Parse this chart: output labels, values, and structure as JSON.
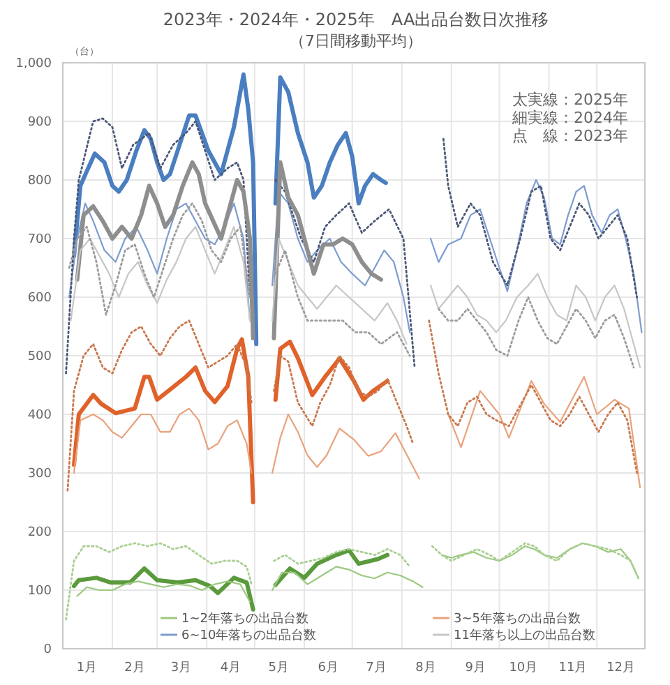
{
  "chart_data": {
    "type": "line",
    "title": "2023年・2024年・2025年　AA出品台数日次推移",
    "subtitle": "（7日間移動平均）",
    "ylabel": "（台）",
    "xlim": [
      "--01-01",
      "--12-31"
    ],
    "xticks": [
      {
        "value": "--01-01",
        "label": null
      },
      {
        "value": "--01-16",
        "label": "1月"
      },
      {
        "value": "--02-01",
        "label": null
      },
      {
        "value": "--02-15",
        "label": "2月"
      },
      {
        "value": "--03-01",
        "label": null
      },
      {
        "value": "--03-16",
        "label": "3月"
      },
      {
        "value": "--04-01",
        "label": null
      },
      {
        "value": "--04-16",
        "label": "4月"
      },
      {
        "value": "--05-01",
        "label": null
      },
      {
        "value": "--05-16",
        "label": "5月"
      },
      {
        "value": "--06-01",
        "label": null
      },
      {
        "value": "--06-16",
        "label": "6月"
      },
      {
        "value": "--07-01",
        "label": null
      },
      {
        "value": "--07-16",
        "label": "7月"
      },
      {
        "value": "--08-01",
        "label": null
      },
      {
        "value": "--08-16",
        "label": "8月"
      },
      {
        "value": "--09-01",
        "label": null
      },
      {
        "value": "--09-16",
        "label": "9月"
      },
      {
        "value": "--10-01",
        "label": null
      },
      {
        "value": "--10-16",
        "label": "10月"
      },
      {
        "value": "--11-01",
        "label": null
      },
      {
        "value": "--11-16",
        "label": "11月"
      },
      {
        "value": "--12-01",
        "label": null
      },
      {
        "value": "--12-16",
        "label": "12月"
      },
      {
        "value": "--12-31",
        "label": null
      }
    ],
    "ylim": [
      0,
      1000
    ],
    "yticks": [
      0,
      100,
      200,
      300,
      400,
      500,
      600,
      700,
      800,
      900,
      {
        "value": 1000,
        "label": "1,000"
      }
    ],
    "grid": true,
    "legend": "bottom",
    "annotations": [
      "太実線：2025年",
      "細実線：2024年",
      "点　線：2023年"
    ],
    "series": [
      {
        "color": "#5a9a3c",
        "line_style": "solid",
        "x": [
          "--01-08",
          "--01-11",
          "--01-22",
          "--01-31",
          "--02-12",
          "--02-21",
          "--03-01",
          "--03-14",
          "--03-25",
          "--04-03",
          "--04-08",
          "--04-18",
          "--04-26",
          "--04-30",
          "--05-07",
          "--05-14",
          "--05-23",
          "--06-01",
          "--06-09",
          "--06-21",
          "--06-29",
          "--07-05",
          "--07-17",
          "--07-23"
        ],
        "values": [
          107,
          117,
          121,
          113,
          113,
          137,
          117,
          113,
          117,
          107,
          95,
          121,
          113,
          67,
          null,
          109,
          137,
          121,
          145,
          160,
          168,
          145,
          153,
          160
        ]
      },
      {
        "name": "1~2年落ちの出品台数",
        "color": "#9cc981",
        "line_style": "solid",
        "x": [
          "--01-10",
          "--01-16",
          "--01-24",
          "--02-01",
          "--02-09",
          "--02-17",
          "--02-25",
          "--03-05",
          "--03-13",
          "--03-21",
          "--03-29",
          "--04-06",
          "--04-14",
          "--04-22",
          "--04-28",
          "--05-05",
          "--05-12",
          "--05-18",
          "--05-26",
          "--06-03",
          "--06-09",
          "--06-15",
          "--06-21",
          "--06-29",
          "--07-07",
          "--07-15",
          "--07-23",
          "--07-31",
          "--08-08",
          "--08-14",
          "--08-19",
          "--08-26",
          "--09-01",
          "--09-07",
          "--09-15",
          "--09-23",
          "--10-01",
          "--10-09",
          "--10-17",
          "--10-23",
          "--10-29",
          "--11-06",
          "--11-14",
          "--11-22",
          "--11-30",
          "--12-08",
          "--12-16",
          "--12-22",
          "--12-27"
        ],
        "values": [
          90,
          105,
          100,
          100,
          110,
          115,
          110,
          105,
          110,
          108,
          100,
          110,
          115,
          110,
          80,
          null,
          100,
          130,
          130,
          110,
          120,
          130,
          140,
          135,
          125,
          120,
          130,
          125,
          115,
          105,
          null,
          160,
          155,
          160,
          165,
          155,
          150,
          160,
          175,
          170,
          160,
          155,
          170,
          180,
          175,
          165,
          170,
          150,
          120
        ]
      },
      {
        "color": "#a9cf92",
        "line_style": "dotted",
        "x": [
          "--01-03",
          "--01-08",
          "--01-14",
          "--01-22",
          "--01-30",
          "--02-07",
          "--02-15",
          "--02-23",
          "--03-03",
          "--03-11",
          "--03-19",
          "--03-27",
          "--04-04",
          "--04-12",
          "--04-20",
          "--04-26",
          "--04-29",
          "--05-06",
          "--05-13",
          "--05-20",
          "--05-28",
          "--06-05",
          "--06-13",
          "--06-21",
          "--06-29",
          "--07-07",
          "--07-15",
          "--07-23",
          "--07-31",
          "--08-06",
          "--08-13",
          "--08-20",
          "--08-26",
          "--09-01",
          "--09-09",
          "--09-17",
          "--09-25",
          "--10-01",
          "--10-09",
          "--10-17",
          "--10-23",
          "--10-29",
          "--11-06",
          "--11-14",
          "--11-22",
          "--11-30",
          "--12-08",
          "--12-16",
          "--12-22",
          "--12-27"
        ],
        "values": [
          50,
          150,
          175,
          175,
          165,
          175,
          180,
          175,
          180,
          170,
          175,
          160,
          145,
          150,
          150,
          140,
          110,
          null,
          150,
          160,
          145,
          150,
          155,
          165,
          170,
          165,
          160,
          170,
          160,
          140,
          null,
          175,
          160,
          150,
          160,
          170,
          160,
          150,
          165,
          180,
          175,
          160,
          150,
          170,
          180,
          175,
          170,
          160,
          150,
          120
        ]
      },
      {
        "color": "#e0622a",
        "line_style": "solid",
        "x": [
          "--01-08",
          "--01-11",
          "--01-20",
          "--01-25",
          "--02-03",
          "--02-15",
          "--02-21",
          "--02-24",
          "--03-01",
          "--03-08",
          "--03-19",
          "--03-25",
          "--03-31",
          "--04-06",
          "--04-14",
          "--04-20",
          "--04-23",
          "--04-27",
          "--04-30",
          "--05-07",
          "--05-14",
          "--05-17",
          "--05-23",
          "--05-28",
          "--06-06",
          "--06-14",
          "--06-21",
          "--06-23",
          "--07-02",
          "--07-08",
          "--07-14",
          "--07-23"
        ],
        "values": [
          314,
          400,
          433,
          418,
          402,
          410,
          464,
          464,
          425,
          440,
          464,
          480,
          440,
          421,
          448,
          512,
          528,
          464,
          250,
          null,
          425,
          512,
          524,
          496,
          433,
          464,
          488,
          496,
          457,
          425,
          440,
          457
        ]
      },
      {
        "name": "3~5年落ちの出品台数",
        "color": "#e9a27c",
        "line_style": "solid",
        "x": [
          "--01-08",
          "--01-12",
          "--01-20",
          "--01-26",
          "--02-01",
          "--02-07",
          "--02-13",
          "--02-19",
          "--02-25",
          "--03-03",
          "--03-09",
          "--03-15",
          "--03-21",
          "--03-27",
          "--04-02",
          "--04-08",
          "--04-14",
          "--04-20",
          "--04-26",
          "--04-29",
          "--05-06",
          "--05-12",
          "--05-17",
          "--05-22",
          "--05-28",
          "--06-03",
          "--06-09",
          "--06-15",
          "--06-23",
          "--07-02",
          "--07-11",
          "--07-19",
          "--07-28",
          "--08-06",
          "--08-12",
          "--08-21",
          "--08-30",
          "--09-07",
          "--09-19",
          "--10-01",
          "--10-07",
          "--10-21",
          "--10-29",
          "--11-08",
          "--11-23",
          "--12-01",
          "--12-12",
          "--12-21",
          "--12-28"
        ],
        "values": [
          300,
          390,
          400,
          390,
          370,
          360,
          380,
          400,
          400,
          370,
          370,
          400,
          410,
          390,
          340,
          350,
          380,
          390,
          350,
          300,
          null,
          300,
          360,
          400,
          370,
          330,
          310,
          330,
          376,
          357,
          329,
          337,
          368,
          321,
          290,
          null,
          400,
          344,
          440,
          400,
          360,
          457,
          418,
          387,
          464,
          400,
          425,
          410,
          275
        ]
      },
      {
        "color": "#c9784c",
        "line_style": "dotted",
        "x": [
          "--01-04",
          "--01-08",
          "--01-14",
          "--01-20",
          "--01-26",
          "--02-01",
          "--02-07",
          "--02-13",
          "--02-19",
          "--02-25",
          "--03-03",
          "--03-09",
          "--03-15",
          "--03-21",
          "--03-27",
          "--04-02",
          "--04-08",
          "--04-14",
          "--04-20",
          "--04-26",
          "--04-29",
          "--05-06",
          "--05-13",
          "--05-17",
          "--05-22",
          "--05-28",
          "--06-06",
          "--06-11",
          "--06-17",
          "--06-23",
          "--06-29",
          "--07-05",
          "--07-11",
          "--07-17",
          "--07-23",
          "--07-29",
          "--08-04",
          "--08-08",
          "--08-14",
          "--08-18",
          "--08-24",
          "--08-30",
          "--09-05",
          "--09-11",
          "--09-17",
          "--09-23",
          "--09-29",
          "--10-07",
          "--10-15",
          "--10-21",
          "--10-27",
          "--11-02",
          "--11-08",
          "--11-14",
          "--11-20",
          "--11-26",
          "--12-02",
          "--12-08",
          "--12-14",
          "--12-20",
          "--12-26"
        ],
        "values": [
          270,
          440,
          500,
          520,
          480,
          470,
          510,
          540,
          550,
          520,
          500,
          530,
          550,
          560,
          520,
          480,
          490,
          500,
          520,
          480,
          420,
          null,
          440,
          500,
          490,
          420,
          380,
          420,
          450,
          500,
          480,
          440,
          430,
          440,
          460,
          420,
          380,
          350,
          null,
          560,
          470,
          400,
          380,
          420,
          430,
          400,
          390,
          380,
          420,
          450,
          420,
          390,
          380,
          400,
          430,
          400,
          370,
          400,
          420,
          390,
          300
        ]
      },
      {
        "color": "#4a7ec0",
        "line_style": "solid",
        "x": [
          "--01-08",
          "--01-12",
          "--01-16",
          "--01-21",
          "--01-27",
          "--02-01",
          "--02-05",
          "--02-10",
          "--02-16",
          "--02-21",
          "--02-25",
          "--03-01",
          "--03-05",
          "--03-09",
          "--03-15",
          "--03-21",
          "--03-25",
          "--03-29",
          "--04-02",
          "--04-06",
          "--04-10",
          "--04-14",
          "--04-18",
          "--04-22",
          "--04-24",
          "--04-27",
          "--04-30",
          "--05-02",
          "--05-08",
          "--05-14",
          "--05-17",
          "--05-22",
          "--05-28",
          "--06-03",
          "--06-07",
          "--06-12",
          "--06-17",
          "--06-22",
          "--06-27",
          "--07-01",
          "--07-05",
          "--07-09",
          "--07-14",
          "--07-19",
          "--07-22"
        ],
        "values": [
          670,
          790,
          815,
          845,
          830,
          790,
          780,
          800,
          850,
          885,
          870,
          830,
          800,
          810,
          860,
          910,
          910,
          880,
          850,
          830,
          810,
          850,
          890,
          950,
          980,
          920,
          830,
          520,
          null,
          760,
          975,
          950,
          880,
          830,
          770,
          790,
          830,
          860,
          880,
          840,
          760,
          790,
          810,
          800,
          795
        ]
      },
      {
        "name": "6~10年落ちの出品台数",
        "color": "#7d9cd0",
        "line_style": "solid",
        "x": [
          "--01-05",
          "--01-10",
          "--01-15",
          "--01-20",
          "--01-27",
          "--02-03",
          "--02-09",
          "--02-16",
          "--02-23",
          "--03-01",
          "--03-07",
          "--03-13",
          "--03-19",
          "--03-25",
          "--03-31",
          "--04-06",
          "--04-12",
          "--04-18",
          "--04-24",
          "--04-28",
          "--05-05",
          "--05-12",
          "--05-16",
          "--05-22",
          "--05-28",
          "--06-03",
          "--06-09",
          "--06-17",
          "--06-24",
          "--07-01",
          "--07-09",
          "--07-15",
          "--07-21",
          "--07-27",
          "--08-02",
          "--08-06",
          "--08-13",
          "--08-19",
          "--08-24",
          "--08-30",
          "--09-07",
          "--09-13",
          "--09-19",
          "--09-25",
          "--10-01",
          "--10-06",
          "--10-12",
          "--10-18",
          "--10-24",
          "--10-29",
          "--11-03",
          "--11-08",
          "--11-13",
          "--11-18",
          "--11-23",
          "--11-28",
          "--12-04",
          "--12-09",
          "--12-14",
          "--12-19",
          "--12-24",
          "--12-29"
        ],
        "values": [
          600,
          700,
          760,
          730,
          680,
          660,
          700,
          720,
          680,
          640,
          700,
          750,
          760,
          730,
          700,
          690,
          720,
          760,
          700,
          560,
          null,
          620,
          780,
          760,
          700,
          660,
          680,
          700,
          660,
          640,
          620,
          650,
          680,
          660,
          600,
          540,
          null,
          700,
          660,
          690,
          700,
          740,
          750,
          700,
          650,
          610,
          680,
          760,
          800,
          770,
          700,
          690,
          740,
          780,
          790,
          740,
          710,
          740,
          750,
          700,
          640,
          540
        ]
      },
      {
        "color": "#4b5878",
        "line_style": "dotted",
        "x": [
          "--01-03",
          "--01-08",
          "--01-11",
          "--01-20",
          "--01-26",
          "--02-01",
          "--02-07",
          "--02-14",
          "--02-24",
          "--03-03",
          "--03-11",
          "--03-19",
          "--03-25",
          "--03-31",
          "--04-06",
          "--04-14",
          "--04-20",
          "--04-24",
          "--04-28",
          "--05-06",
          "--05-14",
          "--05-20",
          "--05-30",
          "--06-07",
          "--06-14",
          "--06-21",
          "--06-29",
          "--07-07",
          "--07-15",
          "--07-24",
          "--08-02",
          "--08-09",
          "--08-18",
          "--08-27",
          "--08-30",
          "--09-05",
          "--09-13",
          "--09-19",
          "--09-27",
          "--10-06",
          "--10-14",
          "--10-21",
          "--10-27",
          "--11-02",
          "--11-08",
          "--11-14",
          "--11-20",
          "--11-26",
          "--12-02",
          "--12-08",
          "--12-14",
          "--12-20",
          "--12-26"
        ],
        "values": [
          470,
          700,
          800,
          900,
          905,
          890,
          820,
          860,
          880,
          820,
          860,
          880,
          900,
          850,
          800,
          820,
          830,
          800,
          600,
          null,
          800,
          780,
          700,
          660,
          720,
          740,
          760,
          710,
          730,
          750,
          700,
          480,
          null,
          870,
          790,
          720,
          760,
          740,
          660,
          620,
          700,
          780,
          790,
          700,
          680,
          720,
          760,
          740,
          700,
          720,
          740,
          700,
          600
        ]
      },
      {
        "color": "#8e8e8e",
        "line_style": "solid",
        "x": [
          "--01-10",
          "--01-14",
          "--01-20",
          "--01-26",
          "--02-01",
          "--02-07",
          "--02-13",
          "--02-19",
          "--02-24",
          "--03-01",
          "--03-06",
          "--03-11",
          "--03-17",
          "--03-23",
          "--03-27",
          "--03-31",
          "--04-05",
          "--04-10",
          "--04-16",
          "--04-20",
          "--04-24",
          "--04-28",
          "--04-30",
          "--05-06",
          "--05-13",
          "--05-17",
          "--05-22",
          "--05-28",
          "--06-03",
          "--06-07",
          "--06-13",
          "--06-19",
          "--06-25",
          "--07-01",
          "--07-07",
          "--07-13",
          "--07-19"
        ],
        "values": [
          630,
          740,
          755,
          730,
          700,
          720,
          700,
          740,
          790,
          760,
          720,
          740,
          790,
          830,
          810,
          760,
          730,
          700,
          760,
          800,
          780,
          700,
          530,
          null,
          530,
          830,
          770,
          740,
          680,
          640,
          690,
          690,
          700,
          690,
          660,
          640,
          630
        ]
      },
      {
        "name": "11年落ち以上の出品台数",
        "color": "#c6c6c6",
        "line_style": "solid",
        "x": [
          "--01-06",
          "--01-12",
          "--01-18",
          "--01-24",
          "--01-30",
          "--02-05",
          "--02-11",
          "--02-17",
          "--02-23",
          "--03-01",
          "--03-07",
          "--03-13",
          "--03-19",
          "--03-25",
          "--03-31",
          "--04-06",
          "--04-12",
          "--04-18",
          "--04-24",
          "--04-28",
          "--05-05",
          "--05-12",
          "--05-16",
          "--05-22",
          "--05-28",
          "--06-03",
          "--06-09",
          "--06-15",
          "--06-21",
          "--06-29",
          "--07-07",
          "--07-15",
          "--07-23",
          "--07-29",
          "--08-04",
          "--08-12",
          "--08-19",
          "--08-24",
          "--08-30",
          "--09-05",
          "--09-11",
          "--09-17",
          "--09-23",
          "--09-29",
          "--10-05",
          "--10-12",
          "--10-19",
          "--10-25",
          "--10-31",
          "--11-06",
          "--11-12",
          "--11-18",
          "--11-24",
          "--11-30",
          "--12-06",
          "--12-12",
          "--12-18",
          "--12-24",
          "--12-28"
        ],
        "values": [
          560,
          680,
          700,
          670,
          640,
          600,
          640,
          660,
          620,
          590,
          630,
          660,
          700,
          720,
          680,
          640,
          680,
          720,
          660,
          560,
          null,
          560,
          700,
          660,
          620,
          600,
          580,
          600,
          620,
          600,
          580,
          560,
          590,
          560,
          520,
          null,
          620,
          580,
          600,
          620,
          600,
          570,
          560,
          540,
          560,
          600,
          620,
          640,
          600,
          570,
          560,
          620,
          600,
          560,
          600,
          620,
          580,
          520,
          480
        ]
      },
      {
        "color": "#9c9c9c",
        "line_style": "dotted",
        "x": [
          "--01-05",
          "--01-10",
          "--01-16",
          "--01-22",
          "--01-28",
          "--02-03",
          "--02-09",
          "--02-15",
          "--02-21",
          "--02-27",
          "--03-05",
          "--03-11",
          "--03-17",
          "--03-23",
          "--03-29",
          "--04-04",
          "--04-10",
          "--04-16",
          "--04-22",
          "--04-28",
          "--05-06",
          "--05-14",
          "--05-20",
          "--05-28",
          "--06-03",
          "--06-09",
          "--06-17",
          "--06-25",
          "--07-03",
          "--07-11",
          "--07-19",
          "--07-29",
          "--08-06",
          "--08-16",
          "--08-24",
          "--08-30",
          "--09-05",
          "--09-11",
          "--09-17",
          "--09-23",
          "--09-29",
          "--10-06",
          "--10-13",
          "--10-19",
          "--10-25",
          "--10-31",
          "--11-06",
          "--11-12",
          "--11-18",
          "--11-24",
          "--11-30",
          "--12-06",
          "--12-12",
          "--12-18",
          "--12-24"
        ],
        "values": [
          650,
          700,
          720,
          660,
          570,
          620,
          680,
          690,
          640,
          600,
          650,
          700,
          740,
          760,
          730,
          680,
          660,
          700,
          720,
          600,
          null,
          640,
          680,
          600,
          560,
          560,
          560,
          560,
          540,
          540,
          520,
          540,
          500,
          null,
          580,
          560,
          560,
          580,
          560,
          540,
          510,
          500,
          560,
          600,
          560,
          530,
          520,
          550,
          580,
          560,
          530,
          560,
          570,
          530,
          480
        ]
      }
    ]
  }
}
